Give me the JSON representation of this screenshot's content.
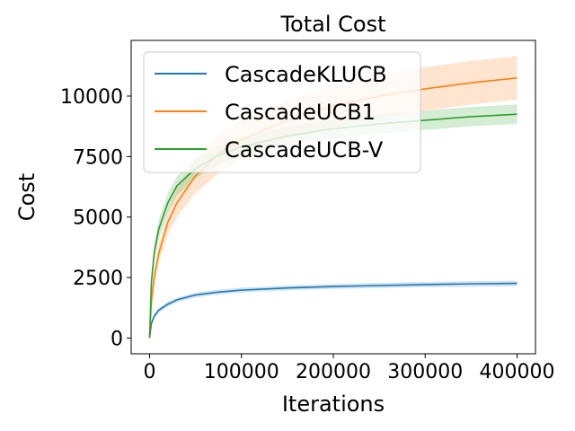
{
  "chart_data": {
    "type": "line",
    "title": "Total Cost",
    "xlabel": "Iterations",
    "ylabel": "Cost",
    "xlim": [
      -20000,
      420000
    ],
    "ylim": [
      -650,
      12300
    ],
    "xticks": [
      0,
      100000,
      200000,
      300000,
      400000
    ],
    "xtick_labels": [
      "0",
      "100000",
      "200000",
      "300000",
      "400000"
    ],
    "yticks": [
      0,
      2500,
      5000,
      7500,
      10000
    ],
    "ytick_labels": [
      "0",
      "2500",
      "5000",
      "7500",
      "10000"
    ],
    "grid": false,
    "legend_position": "top-left",
    "series": [
      {
        "name": "CascadeKLUCB",
        "color": "#1f77b4",
        "x": [
          0,
          2000,
          5000,
          10000,
          20000,
          30000,
          50000,
          75000,
          100000,
          150000,
          200000,
          250000,
          300000,
          350000,
          400000
        ],
        "y": [
          0,
          600,
          900,
          1150,
          1400,
          1580,
          1780,
          1900,
          1980,
          2070,
          2130,
          2170,
          2210,
          2240,
          2260
        ],
        "lower": [
          0,
          500,
          800,
          1050,
          1300,
          1480,
          1680,
          1800,
          1880,
          1970,
          2030,
          2070,
          2100,
          2120,
          2140
        ],
        "upper": [
          0,
          700,
          1000,
          1250,
          1500,
          1680,
          1880,
          2000,
          2080,
          2170,
          2230,
          2280,
          2320,
          2350,
          2370
        ]
      },
      {
        "name": "CascadeUCB1",
        "color": "#ff7f0e",
        "x": [
          0,
          2000,
          5000,
          10000,
          20000,
          30000,
          50000,
          75000,
          100000,
          150000,
          200000,
          250000,
          300000,
          350000,
          400000
        ],
        "y": [
          0,
          1500,
          2500,
          3500,
          4800,
          5600,
          6700,
          7600,
          8200,
          9000,
          9600,
          10000,
          10300,
          10550,
          10750
        ],
        "lower": [
          0,
          1200,
          2100,
          3100,
          4300,
          5000,
          6000,
          6800,
          7400,
          8200,
          8700,
          9100,
          9400,
          9650,
          9850
        ],
        "upper": [
          0,
          1800,
          2900,
          3900,
          5300,
          6200,
          7400,
          8400,
          9000,
          9800,
          10400,
          10900,
          11200,
          11450,
          11650
        ]
      },
      {
        "name": "CascadeUCB-V",
        "color": "#2ca02c",
        "x": [
          0,
          2000,
          5000,
          10000,
          20000,
          30000,
          50000,
          75000,
          100000,
          150000,
          200000,
          250000,
          300000,
          350000,
          400000
        ],
        "y": [
          0,
          2300,
          3500,
          4500,
          5600,
          6300,
          7000,
          7550,
          7900,
          8350,
          8650,
          8850,
          9000,
          9150,
          9250
        ],
        "lower": [
          0,
          2000,
          3100,
          4100,
          5200,
          5900,
          6600,
          7150,
          7500,
          7950,
          8250,
          8450,
          8600,
          8750,
          8850
        ],
        "upper": [
          0,
          2600,
          3900,
          4900,
          6000,
          6700,
          7400,
          7950,
          8300,
          8750,
          9050,
          9250,
          9400,
          9550,
          9650
        ]
      }
    ]
  }
}
